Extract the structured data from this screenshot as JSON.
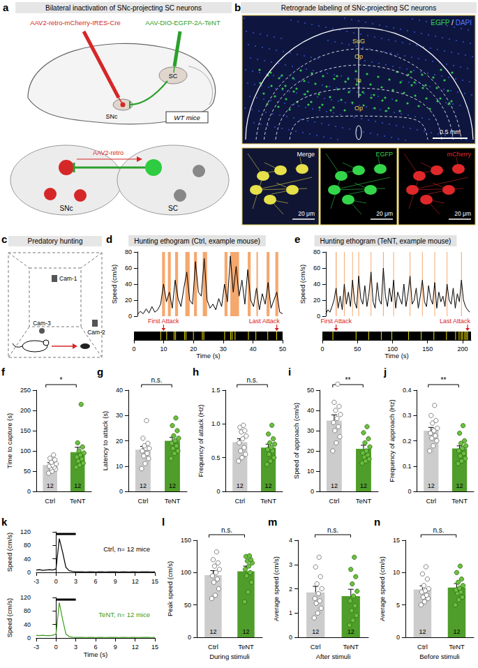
{
  "diagrams": {
    "a": {
      "panel": "a",
      "title": "Bilateral inactivation of SNc-projecting SC neurons",
      "injection_1": "AAV2-retro-mCherry-IRES-Cre",
      "injection_2": "AAV-DIO-EGFP-2A-TeNT",
      "region_1": "SC",
      "region_2": "SNc",
      "mouse": "WT mice",
      "lower_left": "SNc",
      "lower_right": "SC",
      "lower_arrow": "AAV2-retro"
    },
    "b": {
      "panel": "b",
      "title": "Retrograde labeling of SNc-projecting SC neurons",
      "stain": "EGFP / DAPI",
      "layers": [
        "SuG",
        "Op",
        "In",
        "Op"
      ],
      "scale": "0.5 mm",
      "insets": [
        "Merge",
        "EGFP",
        "mCherry"
      ],
      "inset_scale": "20 μm"
    },
    "c": {
      "panel": "c",
      "title": "Predatory hunting",
      "cameras": [
        "Cam-1",
        "Cam-2",
        "Cam-3"
      ]
    }
  },
  "chart_data": [
    {
      "type": "line",
      "panel": "d",
      "title": "Hunting ethogram (Ctrl, example mouse)",
      "x": [
        0,
        1,
        2,
        3,
        4,
        5,
        6,
        7,
        8,
        9,
        10,
        11,
        12,
        13,
        14,
        15,
        16,
        17,
        18,
        19,
        20,
        21,
        22,
        23,
        24,
        25,
        26,
        27,
        28,
        29,
        30,
        31,
        32,
        33,
        34,
        35,
        36,
        37,
        38,
        39,
        40,
        41,
        42,
        43,
        44,
        45,
        46,
        47,
        48,
        49,
        50
      ],
      "values": [
        2,
        6,
        3,
        9,
        4,
        12,
        5,
        8,
        15,
        40,
        18,
        30,
        10,
        45,
        22,
        12,
        35,
        55,
        20,
        15,
        68,
        30,
        25,
        72,
        20,
        10,
        15,
        8,
        22,
        12,
        40,
        18,
        75,
        30,
        62,
        25,
        45,
        15,
        58,
        20,
        12,
        35,
        8,
        28,
        15,
        42,
        10,
        20,
        30,
        5,
        3
      ],
      "color": "#000000",
      "xlim": [
        0,
        50
      ],
      "xticks": [
        0,
        10,
        20,
        30,
        40,
        50
      ],
      "ylim": [
        0,
        80
      ],
      "yticks": [
        0,
        20,
        40,
        60,
        80
      ],
      "x_label": "Time (s)",
      "y_label": "Speed (cm/s)",
      "shaded": [
        [
          8.5,
          9.5
        ],
        [
          10.5,
          11.5
        ],
        [
          13,
          14
        ],
        [
          16.5,
          18
        ],
        [
          19.5,
          20.5
        ],
        [
          22.5,
          24
        ],
        [
          30,
          31
        ],
        [
          32,
          35
        ],
        [
          38,
          39
        ],
        [
          41,
          41.5
        ],
        [
          44.5,
          45.5
        ],
        [
          47.5,
          48.5
        ]
      ],
      "events": [
        9,
        11,
        13.5,
        14,
        17,
        17.5,
        20,
        23,
        23.5,
        30.5,
        32.5,
        33,
        34,
        38.5,
        41,
        45,
        48
      ],
      "annotations": [
        {
          "text": "First Attack",
          "x": 9
        },
        {
          "text": "Last Attack",
          "x": 48
        }
      ]
    },
    {
      "type": "line",
      "panel": "e",
      "title": "Hunting ethogram (TeNT, example mouse)",
      "x": [
        0,
        3,
        6,
        9,
        12,
        15,
        18,
        21,
        24,
        27,
        30,
        33,
        36,
        39,
        42,
        45,
        48,
        51,
        54,
        57,
        60,
        63,
        66,
        69,
        72,
        75,
        78,
        81,
        84,
        87,
        90,
        93,
        96,
        99,
        102,
        105,
        108,
        111,
        114,
        117,
        120,
        123,
        126,
        129,
        132,
        135,
        138,
        141,
        144,
        147,
        150,
        153,
        156,
        159,
        162,
        165,
        168,
        171,
        174,
        177,
        180,
        183,
        186,
        189,
        192,
        195,
        198,
        201,
        204,
        207,
        210
      ],
      "values": [
        3,
        8,
        5,
        12,
        20,
        35,
        10,
        25,
        8,
        40,
        15,
        30,
        12,
        45,
        18,
        10,
        50,
        22,
        15,
        38,
        12,
        28,
        55,
        18,
        10,
        42,
        20,
        15,
        60,
        25,
        12,
        35,
        18,
        45,
        10,
        30,
        22,
        15,
        40,
        12,
        28,
        50,
        15,
        20,
        35,
        10,
        25,
        45,
        18,
        12,
        38,
        22,
        15,
        42,
        10,
        30,
        18,
        25,
        12,
        40,
        20,
        15,
        35,
        10,
        28,
        18,
        45,
        20,
        12,
        8,
        5
      ],
      "color": "#000000",
      "xlim": [
        0,
        212
      ],
      "xticks": [
        0,
        50,
        100,
        150,
        200
      ],
      "ylim": [
        0,
        80
      ],
      "yticks": [
        0,
        20,
        40,
        60,
        80
      ],
      "x_label": "Time (s)",
      "y_label": "Speed (cm/s)",
      "shaded": [
        [
          14.5,
          15.8
        ],
        [
          26.5,
          27.5
        ],
        [
          38.5,
          39.5
        ],
        [
          47.5,
          48.6
        ],
        [
          65.5,
          66.5
        ],
        [
          83.5,
          84.6
        ],
        [
          98.5,
          99.5
        ],
        [
          122.5,
          123.5
        ],
        [
          140.5,
          141.5
        ],
        [
          158.5,
          159.5
        ],
        [
          176.5,
          177.5
        ],
        [
          197.5,
          198.6
        ]
      ],
      "events": [
        15,
        48,
        66,
        84,
        99,
        123,
        141,
        159,
        177,
        190,
        195,
        198,
        200,
        203,
        205,
        207
      ],
      "annotations": [
        {
          "text": "First Attack",
          "x": 15
        },
        {
          "text": "Last Attack",
          "x": 207
        }
      ]
    },
    {
      "type": "bar",
      "panel": "f",
      "y_label": "Time to capture (s)",
      "categories": [
        "Ctrl",
        "TeNT"
      ],
      "values": [
        65,
        97
      ],
      "errors": [
        6,
        12
      ],
      "colors": [
        "#cccccc",
        "#4f9d2a"
      ],
      "n": [
        12,
        12
      ],
      "points": [
        [
          45,
          50,
          55,
          58,
          60,
          62,
          65,
          68,
          72,
          78,
          82,
          90
        ],
        [
          60,
          65,
          70,
          75,
          80,
          85,
          90,
          95,
          100,
          110,
          120,
          215
        ]
      ],
      "ylim": [
        0,
        250
      ],
      "yticks": [
        0,
        50,
        100,
        150,
        200,
        250
      ],
      "significance": "*"
    },
    {
      "type": "bar",
      "panel": "g",
      "y_label": "Latency to attack (s)",
      "categories": [
        "Ctrl",
        "TeNT"
      ],
      "values": [
        16.5,
        20
      ],
      "errors": [
        1.3,
        1.4
      ],
      "colors": [
        "#cccccc",
        "#4f9d2a"
      ],
      "n": [
        12,
        12
      ],
      "points": [
        [
          9,
          11,
          13,
          14,
          15,
          16,
          17,
          17,
          18,
          19,
          21,
          28
        ],
        [
          13,
          15,
          16,
          17,
          18,
          19,
          20,
          21,
          22,
          24,
          26,
          29
        ]
      ],
      "ylim": [
        0,
        40
      ],
      "yticks": [
        0,
        10,
        20,
        30,
        40
      ],
      "significance": "n.s."
    },
    {
      "type": "bar",
      "panel": "h",
      "y_label": "Frequency of attack (Hz)",
      "categories": [
        "Ctrl",
        "TeNT"
      ],
      "values": [
        0.73,
        0.65
      ],
      "errors": [
        0.05,
        0.05
      ],
      "colors": [
        "#cccccc",
        "#4f9d2a"
      ],
      "n": [
        12,
        12
      ],
      "points": [
        [
          0.45,
          0.5,
          0.55,
          0.6,
          0.65,
          0.72,
          0.78,
          0.82,
          0.88,
          0.9,
          0.95,
          0.98
        ],
        [
          0.4,
          0.45,
          0.5,
          0.55,
          0.6,
          0.62,
          0.65,
          0.7,
          0.72,
          0.78,
          0.85,
          0.98
        ]
      ],
      "ylim": [
        0,
        1.5
      ],
      "yticks": [
        0,
        0.5,
        {
          "value": 1,
          "label": "1.0"
        },
        1.5
      ],
      "significance": "n.s."
    },
    {
      "type": "bar",
      "panel": "i",
      "y_label": "Speed of approach (cm/s)",
      "categories": [
        "Ctrl",
        "TeNT"
      ],
      "values": [
        35,
        21
      ],
      "errors": [
        2.8,
        1.8
      ],
      "colors": [
        "#cccccc",
        "#4f9d2a"
      ],
      "n": [
        12,
        12
      ],
      "points": [
        [
          20,
          24,
          27,
          30,
          32,
          34,
          36,
          38,
          40,
          42,
          44,
          53
        ],
        [
          14,
          15,
          16,
          17,
          18,
          19,
          20,
          22,
          24,
          26,
          29,
          32
        ]
      ],
      "ylim": [
        0,
        50
      ],
      "yticks": [
        0,
        10,
        20,
        30,
        40,
        50
      ],
      "significance": "**"
    },
    {
      "type": "bar",
      "panel": "j",
      "y_label": "Frequency of approach (Hz)",
      "categories": [
        "Ctrl",
        "TeNT"
      ],
      "values": [
        0.24,
        0.17
      ],
      "errors": [
        0.013,
        0.01
      ],
      "colors": [
        "#cccccc",
        "#4f9d2a"
      ],
      "n": [
        12,
        12
      ],
      "points": [
        [
          0.16,
          0.18,
          0.2,
          0.21,
          0.22,
          0.23,
          0.24,
          0.25,
          0.27,
          0.28,
          0.3,
          0.34
        ],
        [
          0.11,
          0.12,
          0.13,
          0.14,
          0.15,
          0.16,
          0.17,
          0.18,
          0.19,
          0.2,
          0.23,
          0.26
        ]
      ],
      "ylim": [
        0,
        0.4
      ],
      "yticks": [
        0,
        0.1,
        0.2,
        0.3,
        0.4
      ],
      "significance": "**"
    },
    {
      "type": "line",
      "panel": "k",
      "x": [
        -3,
        -2.5,
        -2,
        -1.5,
        -1,
        -0.5,
        0,
        0.5,
        1,
        1.5,
        2,
        2.5,
        3,
        3.5,
        4,
        4.5,
        5,
        5.5,
        6,
        6.5,
        7,
        7.5,
        8,
        8.5,
        9,
        9.5,
        10,
        10.5,
        11,
        11.5,
        12,
        12.5,
        13,
        13.5,
        14,
        14.5,
        15
      ],
      "series": [
        {
          "name": "Ctrl, n= 12 mice",
          "color": "#000000",
          "values": [
            7,
            8,
            6,
            7,
            8,
            7,
            10,
            100,
            60,
            15,
            5,
            3,
            2,
            2,
            2,
            1.5,
            2,
            2,
            1.5,
            2,
            2,
            1.5,
            2,
            2,
            2,
            1.5,
            2,
            2,
            1.5,
            2,
            2,
            1.5,
            2,
            2,
            2,
            1.5,
            2
          ]
        },
        {
          "name": "TeNT, n= 12 mice",
          "color": "#3a9a1a",
          "values": [
            8,
            7,
            8,
            7,
            7,
            8,
            12,
            105,
            55,
            12,
            4,
            2.5,
            2,
            2,
            2,
            1.5,
            2,
            2,
            1.5,
            2,
            2,
            1.5,
            2,
            2,
            2,
            1.5,
            2,
            2,
            1.5,
            2,
            2,
            1.5,
            2,
            2,
            2,
            1.5,
            2
          ]
        }
      ],
      "xlim": [
        -3,
        15
      ],
      "xticks": [
        -3,
        0,
        3,
        6,
        9,
        12,
        15
      ],
      "ylim": [
        0,
        120
      ],
      "yticks": [
        0,
        40,
        80,
        120
      ],
      "x_label": "Time (s)",
      "y_label": "Speed (cm/s)",
      "stimulus": [
        0,
        3
      ]
    },
    {
      "type": "bar",
      "panel": "l",
      "y_label": "Peak speed (cm/s)",
      "x_label": "During stimuli",
      "categories": [
        "Ctrl",
        "TeNT"
      ],
      "values": [
        96,
        102
      ],
      "errors": [
        7,
        8
      ],
      "colors": [
        "#cccccc",
        "#4f9d2a"
      ],
      "n": [
        12,
        12
      ],
      "points": [
        [
          60,
          65,
          75,
          85,
          90,
          95,
          100,
          105,
          110,
          115,
          120,
          132
        ],
        [
          55,
          70,
          85,
          95,
          100,
          105,
          110,
          115,
          118,
          120,
          125,
          126
        ]
      ],
      "ylim": [
        0,
        150
      ],
      "yticks": [
        0,
        50,
        100,
        150
      ],
      "significance": "n.s."
    },
    {
      "type": "bar",
      "panel": "m",
      "y_label": "Average speed (cm/s)",
      "x_label": "After stimuli",
      "categories": [
        "Ctrl",
        "TeNT"
      ],
      "values": [
        1.85,
        1.7
      ],
      "errors": [
        0.25,
        0.28
      ],
      "colors": [
        "#cccccc",
        "#4f9d2a"
      ],
      "n": [
        12,
        12
      ],
      "points": [
        [
          0.8,
          1.0,
          1.2,
          1.4,
          1.5,
          1.6,
          1.8,
          2.0,
          2.2,
          2.5,
          2.9,
          3.3
        ],
        [
          0.5,
          0.7,
          0.9,
          1.1,
          1.3,
          1.5,
          1.7,
          1.9,
          2.2,
          2.5,
          2.8,
          3.3
        ]
      ],
      "ylim": [
        0,
        4
      ],
      "yticks": [
        0,
        1,
        2,
        3,
        4
      ],
      "significance": "n.s."
    },
    {
      "type": "bar",
      "panel": "n",
      "y_label": "Average speed (cm/s)",
      "x_label": "Before stimuli",
      "categories": [
        "Ctrl",
        "TeNT"
      ],
      "values": [
        7.4,
        7.7
      ],
      "errors": [
        0.55,
        0.6
      ],
      "colors": [
        "#cccccc",
        "#4f9d2a"
      ],
      "n": [
        12,
        12
      ],
      "points": [
        [
          5,
          5.5,
          6,
          6.2,
          6.5,
          7,
          7.2,
          7.5,
          8,
          9,
          9.8,
          10.9
        ],
        [
          5,
          5.8,
          6.2,
          6.8,
          7,
          7.3,
          7.6,
          8,
          8.5,
          9,
          10,
          11
        ]
      ],
      "ylim": [
        0,
        15
      ],
      "yticks": [
        0,
        5,
        10,
        15
      ],
      "significance": "n.s."
    }
  ]
}
